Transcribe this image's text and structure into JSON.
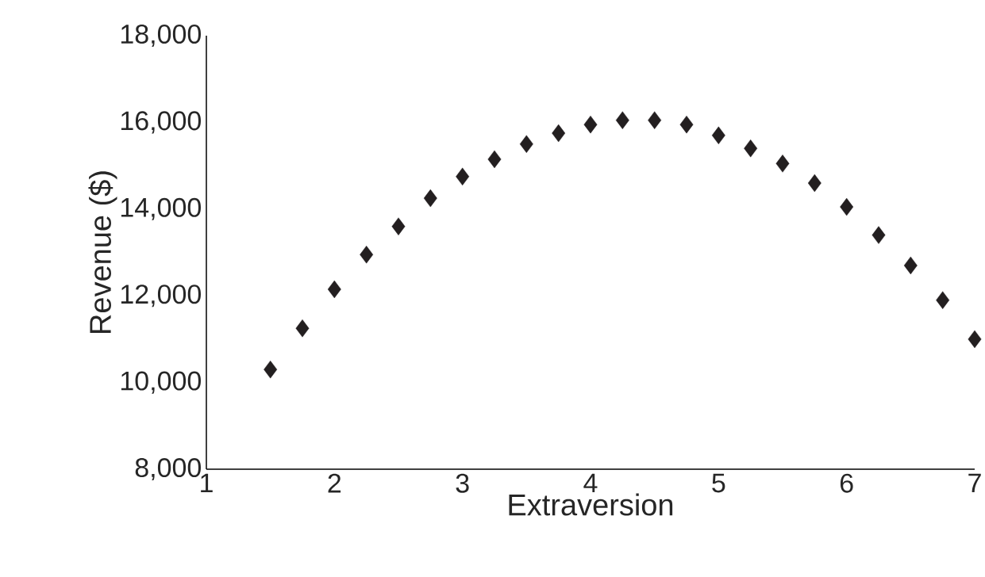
{
  "chart_data": {
    "type": "scatter",
    "xlabel": "Extraversion",
    "ylabel": "Revenue ($)",
    "x": [
      1.5,
      1.75,
      2,
      2.25,
      2.5,
      2.75,
      3,
      3.25,
      3.5,
      3.75,
      4,
      4.25,
      4.5,
      4.75,
      5,
      5.25,
      5.5,
      5.75,
      6,
      6.25,
      6.5,
      6.75,
      7
    ],
    "values": [
      10300,
      11250,
      12150,
      12950,
      13600,
      14250,
      14750,
      15150,
      15500,
      15750,
      15950,
      16050,
      16050,
      15950,
      15700,
      15400,
      15050,
      14600,
      14050,
      13400,
      12700,
      11900,
      11000
    ],
    "color": "#231f20",
    "marker": "diamond",
    "xlim": [
      1,
      7
    ],
    "ylim": [
      8000,
      18000
    ],
    "xticks": [
      1,
      2,
      3,
      4,
      5,
      6,
      7
    ],
    "yticks": [
      {
        "value": 8000,
        "label": "8,000"
      },
      {
        "value": 10000,
        "label": "10,000"
      },
      {
        "value": 12000,
        "label": "12,000"
      },
      {
        "value": 14000,
        "label": "14,000"
      },
      {
        "value": 16000,
        "label": "16,000"
      },
      {
        "value": 18000,
        "label": "18,000"
      }
    ],
    "grid": false
  }
}
